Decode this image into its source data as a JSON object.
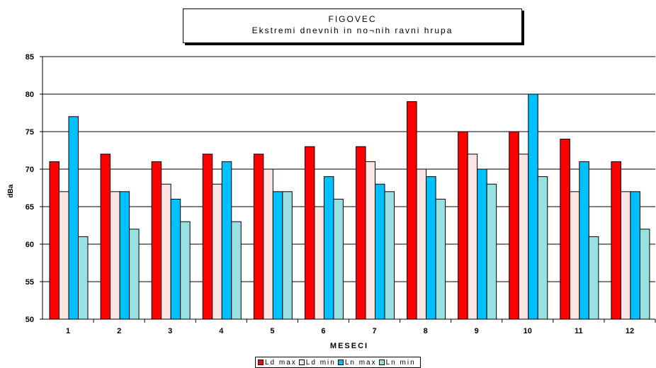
{
  "chart_data": {
    "type": "bar",
    "title": "FIGOVEC",
    "subtitle": "Ekstremi dnevnih in no¬nih ravni hrupa",
    "xlabel": "MESECI",
    "ylabel": "dBa",
    "ylim": [
      50,
      85
    ],
    "yticks": [
      "50",
      "55",
      "60",
      "65",
      "70",
      "75",
      "80",
      "85"
    ],
    "grid": true,
    "legend_position": "bottom",
    "categories": [
      "1",
      "2",
      "3",
      "4",
      "5",
      "6",
      "7",
      "8",
      "9",
      "10",
      "11",
      "12"
    ],
    "series": [
      {
        "name": "Ld  max",
        "color": "#ff0000",
        "values": [
          71,
          72,
          71,
          72,
          72,
          73,
          73,
          79,
          75,
          75,
          74,
          71
        ]
      },
      {
        "name": "Ld  min",
        "color": "#ffe4e4",
        "values": [
          67,
          67,
          68,
          68,
          70,
          65,
          71,
          70,
          72,
          72,
          67,
          67
        ]
      },
      {
        "name": "Ln  max",
        "color": "#00c0ff",
        "values": [
          77,
          67,
          66,
          71,
          67,
          69,
          68,
          69,
          70,
          80,
          71,
          67
        ]
      },
      {
        "name": "Ln  min",
        "color": "#99e0e0",
        "values": [
          61,
          62,
          63,
          63,
          67,
          66,
          67,
          66,
          68,
          69,
          61,
          62
        ]
      }
    ]
  }
}
